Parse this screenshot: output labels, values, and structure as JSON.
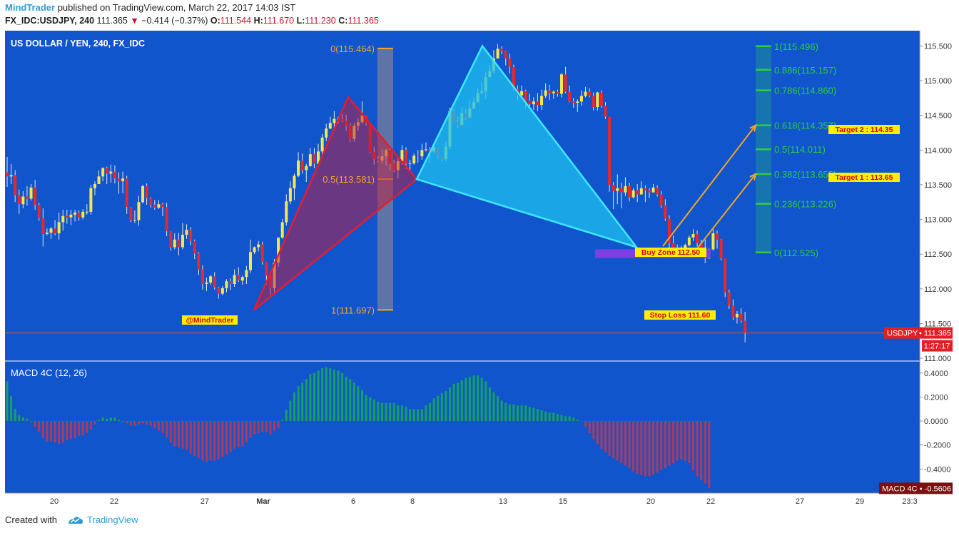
{
  "header": {
    "author": "MindTrader",
    "published_text": "published on TradingView.com, March 22, 2017 14:03 IST",
    "symbol": "FX_IDC:USDJPY, 240",
    "last": "111.365",
    "change": "−0.414 (−0.37%)",
    "o_label": "O:",
    "o": "111.544",
    "h_label": "H:",
    "h": "111.670",
    "l_label": "L:",
    "l": "111.230",
    "c_label": "C:",
    "c": "111.365"
  },
  "footer": {
    "created_with": "Created with",
    "brand": "TradingView"
  },
  "colors": {
    "background": "#1155cc",
    "bull": "#f5e94a",
    "bear": "#e8282b",
    "fib": "#2ecc40",
    "fib_box": "#1a7aa8",
    "gray_box": "#7a7f9a",
    "orange": "#f5a623",
    "red_triangle": "#c41a3a",
    "cyan_triangle": "#1ec0f0",
    "buy_zone": "#7b3fe4",
    "macd_pos": "#16a063",
    "macd_neg": "#b03a5c"
  },
  "chart_data": {
    "type": "candlestick",
    "title": "US DOLLAR / YEN, 240, FX_IDC",
    "y_axis_ticks": [
      "115.500",
      "115.000",
      "114.500",
      "114.000",
      "113.500",
      "113.000",
      "112.500",
      "112.000",
      "111.500",
      "111.000"
    ],
    "ylim": [
      110.96,
      115.72
    ],
    "x_ticks": [
      "20",
      "22",
      "27",
      "Mar",
      "6",
      "8",
      "13",
      "15",
      "20",
      "22",
      "27",
      "29",
      "23:3"
    ],
    "price_label": {
      "name": "USDJPY",
      "value": "111.365",
      "countdown": "1:27:17"
    },
    "candles": [
      [
        113.68,
        113.62,
        113.9,
        113.47
      ],
      [
        113.62,
        113.64,
        113.8,
        113.51
      ],
      [
        113.64,
        113.35,
        113.71,
        113.25
      ],
      [
        113.35,
        113.22,
        113.43,
        113.08
      ],
      [
        113.22,
        113.33,
        113.41,
        113.16
      ],
      [
        113.33,
        113.3,
        113.48,
        113.2
      ],
      [
        113.3,
        113.46,
        113.51,
        113.27
      ],
      [
        113.46,
        113.21,
        113.57,
        113.14
      ],
      [
        113.21,
        113.02,
        113.24,
        112.98
      ],
      [
        113.02,
        112.79,
        113.16,
        112.61
      ],
      [
        112.79,
        112.81,
        112.87,
        112.77
      ],
      [
        112.81,
        112.87,
        112.89,
        112.72
      ],
      [
        112.87,
        112.8,
        112.99,
        112.77
      ],
      [
        112.8,
        112.96,
        113.1,
        112.71
      ],
      [
        112.96,
        113.05,
        113.14,
        112.84
      ],
      [
        113.05,
        113.03,
        113.14,
        112.94
      ],
      [
        113.03,
        113.07,
        113.14,
        112.92
      ],
      [
        113.07,
        113.1,
        113.14,
        112.97
      ],
      [
        113.1,
        113.03,
        113.13,
        112.98
      ],
      [
        113.03,
        113.11,
        113.15,
        113.0
      ],
      [
        113.11,
        113.11,
        113.22,
        113.07
      ],
      [
        113.11,
        113.45,
        113.5,
        113.07
      ],
      [
        113.45,
        113.51,
        113.55,
        113.35
      ],
      [
        113.51,
        113.62,
        113.71,
        113.51
      ],
      [
        113.62,
        113.74,
        113.75,
        113.55
      ],
      [
        113.74,
        113.66,
        113.76,
        113.51
      ],
      [
        113.66,
        113.69,
        113.79,
        113.53
      ],
      [
        113.69,
        113.59,
        113.78,
        113.52
      ],
      [
        113.59,
        113.55,
        113.68,
        113.37
      ],
      [
        113.55,
        113.59,
        113.69,
        113.38
      ],
      [
        113.59,
        113.18,
        113.63,
        113.08
      ],
      [
        113.18,
        112.99,
        113.18,
        112.96
      ],
      [
        112.99,
        112.99,
        113.13,
        112.95
      ],
      [
        112.99,
        113.25,
        113.34,
        112.91
      ],
      [
        113.25,
        113.48,
        113.5,
        113.23
      ],
      [
        113.48,
        113.31,
        113.52,
        113.21
      ],
      [
        113.31,
        113.21,
        113.32,
        113.17
      ],
      [
        113.21,
        113.17,
        113.28,
        113.14
      ],
      [
        113.17,
        113.22,
        113.28,
        113.15
      ],
      [
        113.22,
        113.18,
        113.24,
        113.05
      ],
      [
        113.18,
        112.83,
        113.24,
        112.76
      ],
      [
        112.83,
        112.6,
        112.83,
        112.55
      ],
      [
        112.6,
        112.71,
        112.8,
        112.57
      ],
      [
        112.71,
        112.6,
        112.81,
        112.48
      ],
      [
        112.6,
        112.78,
        112.95,
        112.57
      ],
      [
        112.78,
        112.85,
        112.93,
        112.72
      ],
      [
        112.85,
        112.69,
        112.89,
        112.63
      ],
      [
        112.69,
        112.51,
        112.71,
        112.43
      ],
      [
        112.51,
        112.28,
        112.53,
        112.2
      ],
      [
        112.28,
        112.07,
        112.34,
        111.99
      ],
      [
        112.07,
        112.09,
        112.16,
        111.97
      ],
      [
        112.09,
        112.18,
        112.2,
        112.06
      ],
      [
        112.18,
        112.02,
        112.24,
        111.99
      ],
      [
        112.02,
        111.93,
        112.03,
        111.86
      ],
      [
        111.93,
        112.01,
        112.04,
        111.91
      ],
      [
        112.01,
        112.11,
        112.14,
        111.95
      ],
      [
        112.11,
        112.07,
        112.15,
        111.98
      ],
      [
        112.07,
        112.2,
        112.28,
        112.03
      ],
      [
        112.2,
        112.12,
        112.31,
        112.1
      ],
      [
        112.12,
        112.17,
        112.19,
        112.06
      ],
      [
        112.17,
        112.27,
        112.33,
        112.07
      ],
      [
        112.27,
        112.53,
        112.71,
        112.23
      ],
      [
        112.53,
        112.6,
        112.61,
        112.5
      ],
      [
        112.6,
        112.64,
        112.69,
        112.54
      ],
      [
        112.64,
        112.39,
        112.68,
        112.35
      ],
      [
        112.39,
        112.19,
        112.39,
        112.06
      ],
      [
        112.19,
        112.01,
        112.19,
        111.91
      ],
      [
        112.01,
        112.38,
        112.43,
        111.95
      ],
      [
        112.38,
        112.74,
        112.74,
        112.32
      ],
      [
        112.74,
        112.96,
        113.01,
        112.72
      ],
      [
        112.96,
        113.26,
        113.36,
        112.91
      ],
      [
        113.26,
        113.45,
        113.55,
        113.22
      ],
      [
        113.45,
        113.63,
        113.66,
        113.28
      ],
      [
        113.63,
        113.85,
        113.97,
        113.61
      ],
      [
        113.85,
        113.71,
        113.95,
        113.66
      ],
      [
        113.71,
        113.77,
        113.8,
        113.54
      ],
      [
        113.77,
        113.94,
        114.03,
        113.76
      ],
      [
        113.94,
        113.8,
        114.03,
        113.74
      ],
      [
        113.8,
        113.98,
        114.09,
        113.77
      ],
      [
        113.98,
        114.18,
        114.23,
        113.93
      ],
      [
        114.18,
        114.31,
        114.38,
        114.13
      ],
      [
        114.31,
        114.39,
        114.48,
        114.3
      ],
      [
        114.39,
        114.45,
        114.56,
        114.3
      ],
      [
        114.45,
        114.45,
        114.48,
        114.38
      ],
      [
        114.45,
        114.42,
        114.52,
        114.4
      ],
      [
        114.42,
        114.35,
        114.51,
        114.28
      ],
      [
        114.35,
        114.16,
        114.39,
        114.11
      ],
      [
        114.16,
        114.35,
        114.39,
        114.12
      ],
      [
        114.35,
        114.4,
        114.46,
        114.28
      ],
      [
        114.4,
        114.5,
        114.7,
        114.38
      ],
      [
        114.5,
        114.39,
        114.5,
        114.35
      ],
      [
        114.39,
        113.97,
        114.39,
        113.95
      ],
      [
        113.97,
        113.87,
        114.05,
        113.79
      ],
      [
        113.87,
        113.85,
        113.91,
        113.82
      ],
      [
        113.85,
        113.91,
        114.01,
        113.81
      ],
      [
        113.91,
        114.0,
        114.02,
        113.77
      ],
      [
        114.0,
        113.8,
        114.05,
        113.71
      ],
      [
        113.8,
        113.71,
        113.86,
        113.68
      ],
      [
        113.71,
        113.84,
        113.88,
        113.59
      ],
      [
        113.84,
        114.0,
        114.07,
        113.79
      ],
      [
        114.0,
        113.8,
        114.04,
        113.73
      ],
      [
        113.8,
        113.81,
        113.86,
        113.69
      ],
      [
        113.81,
        113.92,
        113.95,
        113.79
      ],
      [
        113.92,
        113.91,
        114.0,
        113.82
      ],
      [
        113.91,
        114.0,
        114.09,
        113.86
      ],
      [
        114.0,
        114.01,
        114.11,
        113.98
      ],
      [
        114.01,
        113.98,
        114.04,
        113.81
      ],
      [
        113.98,
        114.04,
        114.06,
        113.95
      ],
      [
        114.04,
        113.91,
        114.04,
        113.88
      ],
      [
        113.91,
        113.87,
        113.9,
        113.84
      ],
      [
        113.87,
        114.05,
        114.12,
        113.84
      ],
      [
        114.05,
        114.56,
        114.61,
        114.01
      ],
      [
        114.56,
        114.4,
        114.59,
        114.4
      ],
      [
        114.4,
        114.36,
        114.49,
        114.32
      ],
      [
        114.36,
        114.53,
        114.62,
        114.36
      ],
      [
        114.53,
        114.47,
        114.6,
        114.43
      ],
      [
        114.47,
        114.6,
        114.71,
        114.45
      ],
      [
        114.6,
        114.69,
        114.76,
        114.59
      ],
      [
        114.69,
        114.82,
        114.89,
        114.69
      ],
      [
        114.82,
        114.85,
        114.98,
        114.8
      ],
      [
        114.85,
        115.05,
        115.13,
        114.73
      ],
      [
        115.05,
        115.14,
        115.22,
        115.09
      ],
      [
        115.14,
        115.32,
        115.44,
        115.11
      ],
      [
        115.32,
        115.46,
        115.53,
        115.35
      ],
      [
        115.46,
        115.43,
        115.5,
        115.38
      ],
      [
        115.43,
        115.32,
        115.43,
        115.22
      ],
      [
        115.32,
        115.2,
        115.39,
        115.1
      ],
      [
        115.2,
        114.88,
        115.23,
        114.86
      ],
      [
        114.88,
        114.79,
        114.93,
        114.72
      ],
      [
        114.79,
        114.85,
        114.93,
        114.76
      ],
      [
        114.85,
        114.71,
        114.87,
        114.6
      ],
      [
        114.71,
        114.66,
        114.81,
        114.59
      ],
      [
        114.66,
        114.7,
        114.76,
        114.58
      ],
      [
        114.7,
        114.65,
        114.82,
        114.56
      ],
      [
        114.65,
        114.78,
        114.87,
        114.58
      ],
      [
        114.78,
        114.86,
        114.96,
        114.75
      ],
      [
        114.86,
        114.82,
        114.94,
        114.72
      ],
      [
        114.82,
        114.84,
        114.86,
        114.74
      ],
      [
        114.84,
        114.81,
        114.87,
        114.77
      ],
      [
        114.81,
        115.09,
        115.11,
        114.76
      ],
      [
        115.09,
        114.84,
        115.2,
        114.82
      ],
      [
        114.84,
        114.7,
        114.93,
        114.69
      ],
      [
        114.7,
        114.68,
        114.75,
        114.61
      ],
      [
        114.68,
        114.7,
        114.73,
        114.55
      ],
      [
        114.7,
        114.78,
        114.86,
        114.64
      ],
      [
        114.78,
        114.84,
        114.91,
        114.76
      ],
      [
        114.84,
        114.78,
        114.89,
        114.76
      ],
      [
        114.78,
        114.62,
        114.83,
        114.57
      ],
      [
        114.62,
        114.83,
        114.84,
        114.57
      ],
      [
        114.83,
        114.64,
        114.86,
        114.61
      ],
      [
        114.64,
        114.48,
        114.69,
        114.45
      ],
      [
        114.48,
        113.5,
        114.48,
        113.4
      ],
      [
        113.5,
        113.41,
        113.54,
        113.15
      ],
      [
        113.41,
        113.45,
        113.65,
        113.22
      ],
      [
        113.45,
        113.39,
        113.53,
        113.16
      ],
      [
        113.39,
        113.48,
        113.61,
        113.34
      ],
      [
        113.48,
        113.32,
        113.53,
        113.26
      ],
      [
        113.32,
        113.42,
        113.45,
        113.3
      ],
      [
        113.42,
        113.36,
        113.51,
        113.25
      ],
      [
        113.36,
        113.45,
        113.55,
        113.36
      ],
      [
        113.45,
        113.42,
        113.49,
        113.25
      ],
      [
        113.42,
        113.39,
        113.45,
        113.31
      ],
      [
        113.39,
        113.46,
        113.51,
        113.41
      ],
      [
        113.46,
        113.36,
        113.49,
        113.33
      ],
      [
        113.36,
        113.2,
        113.41,
        113.17
      ],
      [
        113.2,
        113.01,
        113.29,
        112.98
      ],
      [
        113.01,
        112.66,
        113.06,
        112.58
      ],
      [
        112.66,
        112.56,
        112.77,
        112.54
      ],
      [
        112.56,
        112.54,
        112.64,
        112.5
      ],
      [
        112.54,
        112.59,
        112.62,
        112.48
      ],
      [
        112.59,
        112.63,
        112.65,
        112.52
      ],
      [
        112.63,
        112.74,
        112.77,
        112.61
      ],
      [
        112.74,
        112.79,
        112.86,
        112.69
      ],
      [
        112.79,
        112.66,
        112.84,
        112.61
      ],
      [
        112.66,
        112.56,
        112.71,
        112.53
      ],
      [
        112.56,
        112.5,
        112.71,
        112.37
      ],
      [
        112.5,
        112.57,
        112.58,
        112.43
      ],
      [
        112.57,
        112.8,
        112.86,
        112.55
      ],
      [
        112.8,
        112.71,
        112.84,
        112.58
      ],
      [
        112.71,
        112.44,
        112.72,
        112.41
      ],
      [
        112.44,
        111.95,
        112.44,
        111.88
      ],
      [
        111.95,
        111.76,
        111.99,
        111.71
      ],
      [
        111.76,
        111.59,
        111.85,
        111.55
      ],
      [
        111.59,
        111.64,
        111.68,
        111.5
      ],
      [
        111.64,
        111.54,
        111.72,
        111.51
      ],
      [
        111.54,
        111.37,
        111.67,
        111.23
      ]
    ],
    "macd_histogram": [
      0.33,
      0.21,
      0.1,
      0.05,
      0.03,
      0.02,
      -0.01,
      -0.05,
      -0.09,
      -0.14,
      -0.17,
      -0.17,
      -0.18,
      -0.19,
      -0.18,
      -0.16,
      -0.15,
      -0.14,
      -0.12,
      -0.12,
      -0.1,
      -0.07,
      -0.03,
      0.01,
      0.03,
      0.02,
      0.03,
      0.03,
      0.01,
      0.0,
      -0.02,
      -0.04,
      -0.04,
      -0.03,
      -0.02,
      -0.03,
      -0.04,
      -0.06,
      -0.08,
      -0.1,
      -0.14,
      -0.18,
      -0.21,
      -0.22,
      -0.23,
      -0.24,
      -0.27,
      -0.29,
      -0.31,
      -0.33,
      -0.34,
      -0.33,
      -0.33,
      -0.32,
      -0.3,
      -0.28,
      -0.26,
      -0.23,
      -0.22,
      -0.21,
      -0.18,
      -0.14,
      -0.11,
      -0.1,
      -0.09,
      -0.09,
      -0.11,
      -0.08,
      -0.06,
      0.01,
      0.09,
      0.17,
      0.24,
      0.29,
      0.32,
      0.35,
      0.39,
      0.4,
      0.42,
      0.44,
      0.45,
      0.44,
      0.43,
      0.42,
      0.4,
      0.37,
      0.35,
      0.32,
      0.29,
      0.26,
      0.22,
      0.2,
      0.18,
      0.16,
      0.15,
      0.15,
      0.15,
      0.15,
      0.13,
      0.13,
      0.12,
      0.1,
      0.1,
      0.1,
      0.1,
      0.13,
      0.15,
      0.19,
      0.21,
      0.23,
      0.25,
      0.28,
      0.31,
      0.32,
      0.34,
      0.36,
      0.37,
      0.38,
      0.38,
      0.36,
      0.33,
      0.28,
      0.24,
      0.21,
      0.17,
      0.15,
      0.14,
      0.14,
      0.13,
      0.13,
      0.13,
      0.12,
      0.11,
      0.1,
      0.09,
      0.08,
      0.07,
      0.07,
      0.06,
      0.05,
      0.04,
      0.04,
      0.03,
      0.01,
      0.0,
      -0.05,
      -0.1,
      -0.15,
      -0.19,
      -0.23,
      -0.26,
      -0.29,
      -0.31,
      -0.33,
      -0.35,
      -0.37,
      -0.39,
      -0.42,
      -0.44,
      -0.45,
      -0.46,
      -0.46,
      -0.45,
      -0.43,
      -0.41,
      -0.39,
      -0.37,
      -0.35,
      -0.33,
      -0.32,
      -0.33,
      -0.35,
      -0.41,
      -0.46,
      -0.49,
      -0.52,
      -0.56
    ],
    "macd": {
      "title": "MACD 4C (12, 26)",
      "y_axis_ticks": [
        "0.4000",
        "0.2000",
        "0.0000",
        "-0.2000",
        "-0.4000"
      ],
      "ylim": [
        -0.6,
        0.5
      ],
      "last_label": {
        "name": "MACD 4C",
        "value": "-0.5606"
      }
    },
    "fib_left": {
      "top_label": "0(115.464)",
      "mid_label": "0.5(113.581)",
      "bottom_label": "1(111.697)",
      "top": 115.464,
      "mid": 113.581,
      "bottom": 111.697
    },
    "fib_right": [
      {
        "label": "1(115.496)",
        "level": 115.496
      },
      {
        "label": "0.886(115.157)",
        "level": 115.157
      },
      {
        "label": "0.786(114.860)",
        "level": 114.86
      },
      {
        "label": "0.618(114.357)",
        "level": 114.357
      },
      {
        "label": "0.5(114.011)",
        "level": 114.011
      },
      {
        "label": "0.382(113.655)",
        "level": 113.655
      },
      {
        "label": "0.236(113.226)",
        "level": 113.226
      },
      {
        "label": "0(112.525)",
        "level": 112.525
      }
    ],
    "annotations": {
      "watermark": "@MindTrader",
      "buy_zone": "Buy Zone 112.50",
      "stop_loss": "Stop Loss 111.60",
      "target1": "Target 1 : 113.65",
      "target2": "Target 2 : 114.35"
    }
  }
}
